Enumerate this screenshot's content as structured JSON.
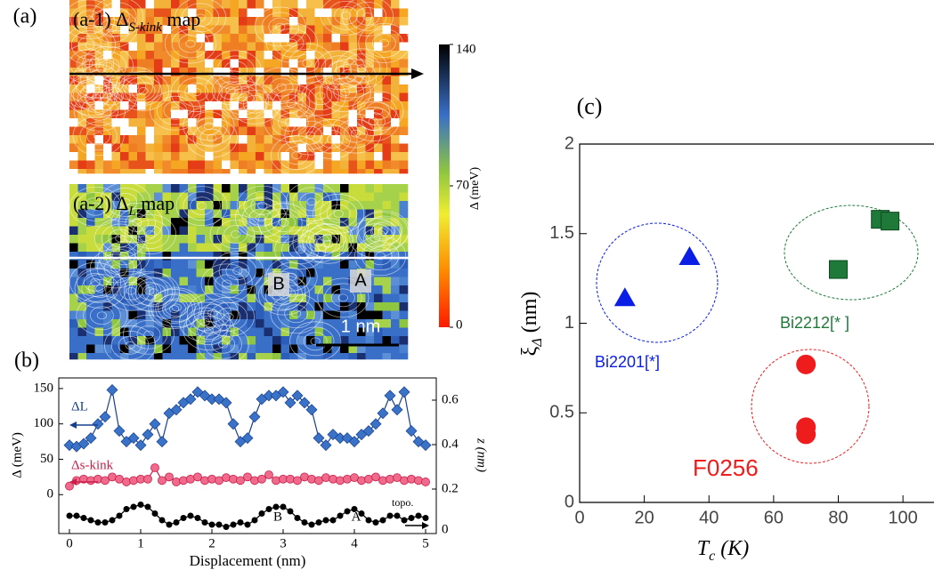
{
  "chart_data": [
    {
      "type": "heatmap",
      "label": "(a)",
      "titles": [
        [
          "(a-1) Δ",
          "S-kink",
          " map"
        ],
        [
          "(a-2) Δ",
          "L",
          " map"
        ]
      ],
      "colorbar_label": "Δ (meV)",
      "clim": [
        0,
        140
      ],
      "cticks": [
        0,
        70,
        140
      ],
      "annotations": [
        "B",
        "A",
        "1 nm"
      ]
    },
    {
      "type": "line",
      "label": "(b)",
      "xlabel": "Displacement (nm)",
      "ylabel": "Δ (meV)",
      "y2label": "z (nm)",
      "xlim": [
        -0.15,
        5.15
      ],
      "xticks": [
        0,
        1,
        2,
        3,
        4,
        5
      ],
      "ylim": [
        -55,
        165
      ],
      "yticks": [
        0,
        50,
        100,
        150
      ],
      "y2lim": [
        0,
        0.7
      ],
      "y2ticks": [
        0,
        0.2,
        0.4,
        0.6
      ],
      "x": [
        0,
        0.1,
        0.2,
        0.3,
        0.4,
        0.5,
        0.6,
        0.7,
        0.8,
        0.9,
        1,
        1.1,
        1.2,
        1.3,
        1.4,
        1.5,
        1.6,
        1.7,
        1.8,
        1.9,
        2,
        2.1,
        2.2,
        2.3,
        2.4,
        2.5,
        2.6,
        2.7,
        2.8,
        2.9,
        3,
        3.1,
        3.2,
        3.3,
        3.4,
        3.5,
        3.6,
        3.7,
        3.8,
        3.9,
        4,
        4.1,
        4.2,
        4.3,
        4.4,
        4.5,
        4.6,
        4.7,
        4.8,
        4.9,
        5
      ],
      "series": [
        {
          "name": "ΔL",
          "color": "#3a72c8",
          "marker": "diamond",
          "values": [
            70,
            68,
            72,
            80,
            100,
            110,
            148,
            90,
            75,
            80,
            70,
            85,
            100,
            75,
            115,
            120,
            130,
            135,
            145,
            140,
            135,
            135,
            130,
            100,
            75,
            80,
            110,
            135,
            140,
            140,
            145,
            130,
            140,
            130,
            120,
            80,
            70,
            85,
            80,
            80,
            75,
            85,
            90,
            100,
            115,
            140,
            120,
            145,
            90,
            75,
            70
          ]
        },
        {
          "name": "Δs-kink",
          "color": "#f06a8c",
          "marker": "circle",
          "values": [
            12,
            20,
            22,
            20,
            22,
            20,
            25,
            22,
            18,
            20,
            22,
            22,
            38,
            20,
            25,
            18,
            20,
            22,
            25,
            20,
            22,
            20,
            24,
            22,
            20,
            25,
            20,
            22,
            28,
            20,
            22,
            22,
            20,
            25,
            22,
            20,
            24,
            22,
            20,
            22,
            24,
            20,
            22,
            25,
            20,
            22,
            24,
            20,
            22,
            20,
            18
          ]
        },
        {
          "name": "topo.",
          "color": "#000000",
          "marker": "dot",
          "axis": "y2",
          "values": [
            0.08,
            0.08,
            0.07,
            0.06,
            0.05,
            0.05,
            0.06,
            0.08,
            0.11,
            0.12,
            0.13,
            0.12,
            0.09,
            0.06,
            0.04,
            0.05,
            0.07,
            0.08,
            0.07,
            0.05,
            0.04,
            0.04,
            0.03,
            0.04,
            0.05,
            0.04,
            0.06,
            0.09,
            0.11,
            0.12,
            0.12,
            0.1,
            0.07,
            0.05,
            0.04,
            0.05,
            0.06,
            0.06,
            0.08,
            0.1,
            0.11,
            0.09,
            0.06,
            0.05,
            0.06,
            0.08,
            0.08,
            0.06,
            0.07,
            0.08,
            0.07
          ]
        }
      ],
      "annotations": [
        "B",
        "A"
      ]
    },
    {
      "type": "scatter",
      "label": "(c)",
      "xlabel": [
        "T",
        "c",
        " (K)"
      ],
      "ylabel": [
        "ξ",
        "Δ",
        "  (nm)"
      ],
      "xlim": [
        0,
        109.6
      ],
      "xticks": [
        0,
        20,
        40,
        60,
        80,
        100
      ],
      "ylim": [
        0,
        2
      ],
      "yticks": [
        0,
        0.5,
        1,
        1.5,
        2
      ],
      "series": [
        {
          "name": "Bi2201[*]",
          "color": "#0a1ee6",
          "marker": "triangle",
          "x": [
            14,
            34
          ],
          "values": [
            1.14,
            1.37
          ]
        },
        {
          "name": "Bi2212[*     ]",
          "color": "#1f7a3a",
          "marker": "square",
          "x": [
            80,
            93,
            96
          ],
          "values": [
            1.3,
            1.58,
            1.57
          ]
        },
        {
          "name": "F0256",
          "color": "#ee1c1c",
          "marker": "circle",
          "x": [
            70,
            70,
            70
          ],
          "values": [
            0.77,
            0.42,
            0.38
          ]
        }
      ]
    }
  ]
}
